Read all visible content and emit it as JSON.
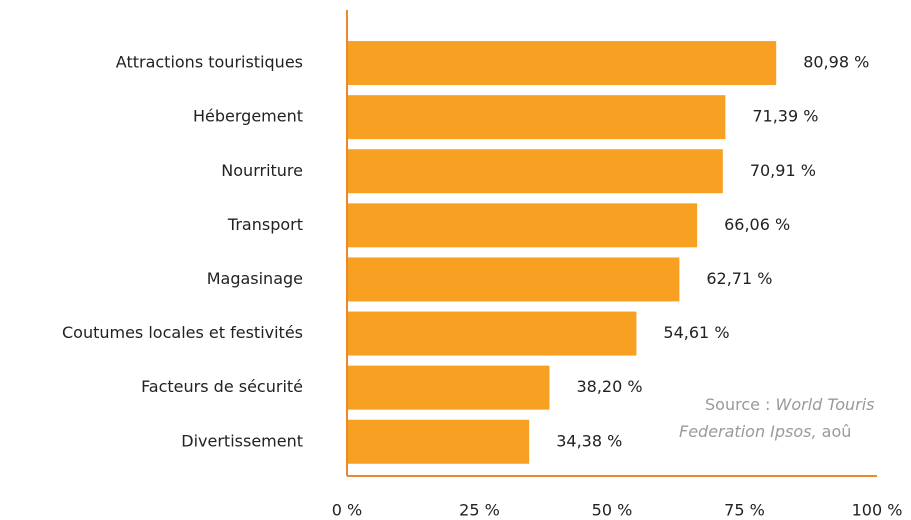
{
  "chart_data": {
    "type": "barh",
    "categories": [
      "Attractions touristiques",
      "Hébergement",
      "Nourriture",
      "Transport",
      "Magasinage",
      "Coutumes locales et festivités",
      "Facteurs de sécurité",
      "Divertissement"
    ],
    "values": [
      80.98,
      71.39,
      70.91,
      66.06,
      62.71,
      54.61,
      38.2,
      34.38
    ],
    "value_labels": [
      "80,98 %",
      "71,39 %",
      "70,91 %",
      "66,06 %",
      "62,71 %",
      "54,61 %",
      "38,20 %",
      "34,38 %"
    ],
    "color": "#f7a021",
    "axis_color": "#e8892b",
    "xlim": [
      0,
      100
    ],
    "xticks": [
      {
        "value": 0,
        "label": "0 %"
      },
      {
        "value": 25,
        "label": "25 %"
      },
      {
        "value": 50,
        "label": "50 %"
      },
      {
        "value": 75,
        "label": "75 %"
      },
      {
        "value": 100,
        "label": "100 %"
      }
    ],
    "annotation": {
      "prefix": "Source : ",
      "italic1": "World Touris",
      "italic2": "Federation Ipsos,",
      "suffix": " aoû"
    }
  }
}
